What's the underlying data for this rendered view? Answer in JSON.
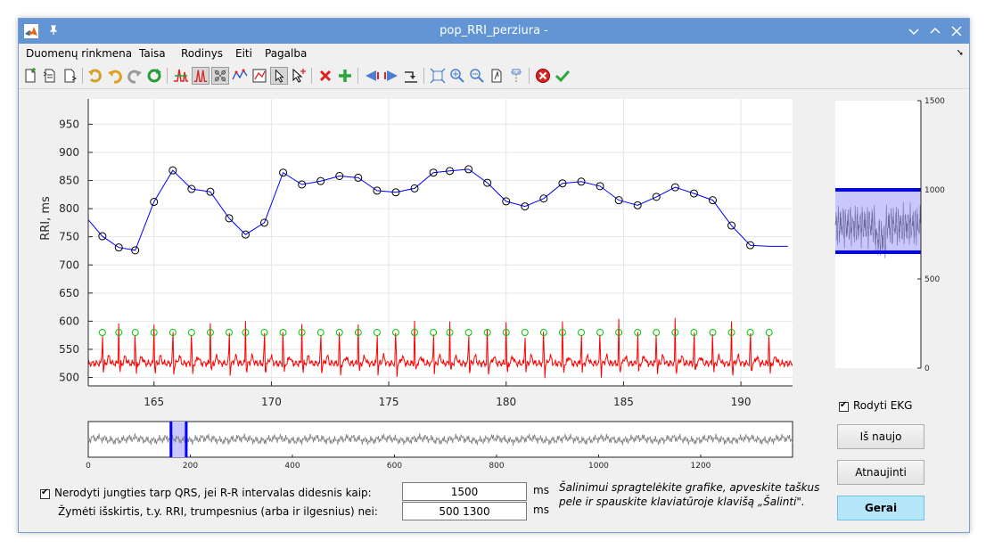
{
  "window": {
    "title": "pop_RRI_perziura -",
    "accent": "#6395d4"
  },
  "menu": [
    "Duomenų rinkmena",
    "Taisa",
    "Rodinys",
    "Eiti",
    "Pagalba"
  ],
  "menu_overflow": "➘",
  "toolbar": {
    "icons": [
      "new-file-icon",
      "open-file-icon",
      "save-file-icon",
      "undo-all-icon",
      "undo-icon",
      "redo-icon",
      "refresh-icon",
      "peak-mark-icon",
      "peak-select-icon",
      "grid-select-icon",
      "point-tool-icon",
      "zoom-box-tool-icon",
      "pointer-arrow-icon",
      "pointer-plus-icon",
      "delete-red-x-icon",
      "add-green-plus-icon",
      "prev-arrow-icon",
      "next-arrow-icon",
      "jump-icon",
      "fit-view-icon",
      "zoom-in-icon",
      "zoom-out-icon",
      "page-icon",
      "data-cursor-icon",
      "cancel-red-icon",
      "ok-green-check-icon"
    ]
  },
  "chart_data": [
    {
      "type": "line",
      "ylabel": "RRI, ms",
      "xlim": [
        162.2,
        192.2
      ],
      "ylim": [
        485,
        995
      ],
      "yticks": [
        950,
        900,
        850,
        800,
        750,
        700,
        650,
        600,
        550,
        500
      ],
      "xticks": [
        165,
        170,
        175,
        180,
        185,
        190
      ],
      "grid": true,
      "series": [
        {
          "color": "#0000ff",
          "marker": "circle",
          "x": [
            162.0,
            162.8,
            163.5,
            164.2,
            165.0,
            165.8,
            166.6,
            167.4,
            168.2,
            168.9,
            169.7,
            170.5,
            171.3,
            172.1,
            172.9,
            173.7,
            174.5,
            175.3,
            176.1,
            176.9,
            177.6,
            178.4,
            179.2,
            180.0,
            180.8,
            181.6,
            182.4,
            183.2,
            184.0,
            184.8,
            185.6,
            186.4,
            187.2,
            188.0,
            188.8,
            189.6,
            190.4,
            191.2,
            192.0
          ],
          "y": [
            790,
            751,
            731,
            726,
            812,
            868,
            835,
            830,
            783,
            754,
            775,
            864,
            843,
            849,
            858,
            855,
            832,
            829,
            836,
            864,
            867,
            870,
            846,
            813,
            804,
            818,
            845,
            848,
            840,
            815,
            806,
            821,
            838,
            827,
            815,
            770,
            735,
            733,
            733
          ],
          "markers_from": 1,
          "markers_to": 36
        },
        {
          "color": "#ff0000",
          "label": "ekg",
          "beat_times": [
            162.8,
            163.5,
            164.2,
            165.0,
            165.8,
            166.6,
            167.4,
            168.2,
            168.9,
            169.7,
            170.5,
            171.3,
            172.1,
            172.9,
            173.7,
            174.5,
            175.3,
            176.1,
            176.9,
            177.6,
            178.4,
            179.2,
            180.0,
            180.8,
            181.6,
            182.4,
            183.2,
            184.0,
            184.8,
            185.6,
            186.4,
            187.2,
            188.0,
            188.8,
            189.6,
            190.4,
            191.2
          ],
          "baseline": 525,
          "peak": 600,
          "trough": 505,
          "marker_level": 580,
          "marker_color": "#00c800"
        }
      ]
    },
    {
      "type": "line",
      "name": "overview",
      "xlim": [
        0,
        1380
      ],
      "xticks": [
        0,
        200,
        400,
        600,
        800,
        1000,
        1200
      ],
      "window_range": [
        162,
        192
      ],
      "series_color": "#808080",
      "highlight_color": "#0000ff"
    },
    {
      "type": "area",
      "name": "rri-histogram-panel",
      "ylim": [
        0,
        1500
      ],
      "yticks": [
        1500,
        1000,
        500,
        0
      ],
      "band": [
        650,
        1000
      ],
      "band_color": "#c8c8ff",
      "band_line_color": "#0000ff",
      "trace_color": "#6b6b9c"
    }
  ],
  "options": {
    "show_ekg": {
      "label": "Rodyti EKG",
      "checked": true
    },
    "no_connect": {
      "label": "Nerodyti jungties tarp QRS, jei R-R intervalas didesnis kaip:",
      "checked": true
    },
    "mark_outliers": {
      "label": "Žymėti išskirtis, t.y. RRI, trumpesnius (arba ir ilgesnius) nei:"
    },
    "max_rr": {
      "value": "1500",
      "unit": "ms"
    },
    "outlier_range": {
      "value": "500 1300",
      "unit": "ms"
    },
    "hint": {
      "line1": "Šalinimui spragtelėkite grafike, apveskite taškus",
      "line2": "pele ir spauskite klaviatūroje klavišą „Šalinti\"."
    }
  },
  "buttons": {
    "restart": "Iš naujo",
    "update": "Atnaujinti",
    "ok": "Gerai"
  }
}
